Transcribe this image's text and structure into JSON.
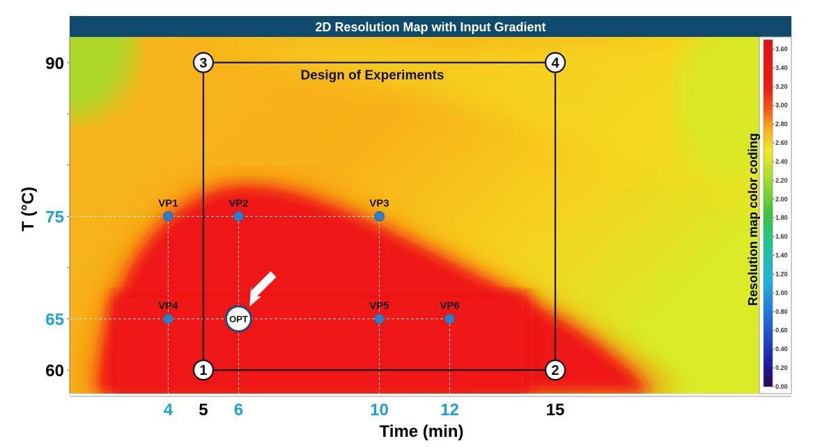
{
  "chart_data": {
    "type": "heatmap",
    "title": "2D Resolution Map with Input Gradient",
    "xlabel": "Time (min)",
    "ylabel": "T (°C)",
    "xlim": [
      1.2,
      20.8
    ],
    "ylim": [
      57.7,
      92.5
    ],
    "x_ticks": [
      {
        "value": 4,
        "label": "4",
        "color": "#1ea0d8"
      },
      {
        "value": 5,
        "label": "5",
        "color": "#000000"
      },
      {
        "value": 6,
        "label": "6",
        "color": "#1ea0d8"
      },
      {
        "value": 10,
        "label": "10",
        "color": "#1ea0d8"
      },
      {
        "value": 12,
        "label": "12",
        "color": "#1ea0d8"
      },
      {
        "value": 15,
        "label": "15",
        "color": "#000000"
      }
    ],
    "y_ticks": [
      {
        "value": 90,
        "label": "90",
        "color": "#000000"
      },
      {
        "value": 75,
        "label": "75",
        "color": "#1ea0d8"
      },
      {
        "value": 65,
        "label": "65",
        "color": "#1ea0d8"
      },
      {
        "value": 60,
        "label": "60",
        "color": "#000000"
      }
    ],
    "design_of_experiments": {
      "label": "Design of Experiments",
      "corners": [
        {
          "id": "1",
          "x": 5,
          "y": 60
        },
        {
          "id": "2",
          "x": 15,
          "y": 60
        },
        {
          "id": "3",
          "x": 5,
          "y": 90
        },
        {
          "id": "4",
          "x": 15,
          "y": 90
        }
      ]
    },
    "verification_points": [
      {
        "name": "VP1",
        "x": 4,
        "y": 75
      },
      {
        "name": "VP2",
        "x": 6,
        "y": 75
      },
      {
        "name": "VP3",
        "x": 10,
        "y": 75
      },
      {
        "name": "VP4",
        "x": 4,
        "y": 65
      },
      {
        "name": "VP5",
        "x": 10,
        "y": 65
      },
      {
        "name": "VP6",
        "x": 12,
        "y": 65
      }
    ],
    "optimum": {
      "label": "OPT",
      "x": 6,
      "y": 65
    },
    "colorbar": {
      "label": "Resolution map color coding",
      "min": 0,
      "max": 3.7,
      "ticks": [
        "0.00",
        "0.20",
        "0.40",
        "0.60",
        "0.80",
        "1.00",
        "1.20",
        "1.40",
        "1.60",
        "1.80",
        "2.00",
        "2.20",
        "2.40",
        "2.60",
        "2.80",
        "3.00",
        "3.20",
        "3.40",
        "3.60"
      ]
    },
    "colors": {
      "title_bar": "#0d4a6b",
      "point": "#2f7fc8",
      "accent_label": "#1ea0d8",
      "arrow": "#ffffff"
    }
  }
}
